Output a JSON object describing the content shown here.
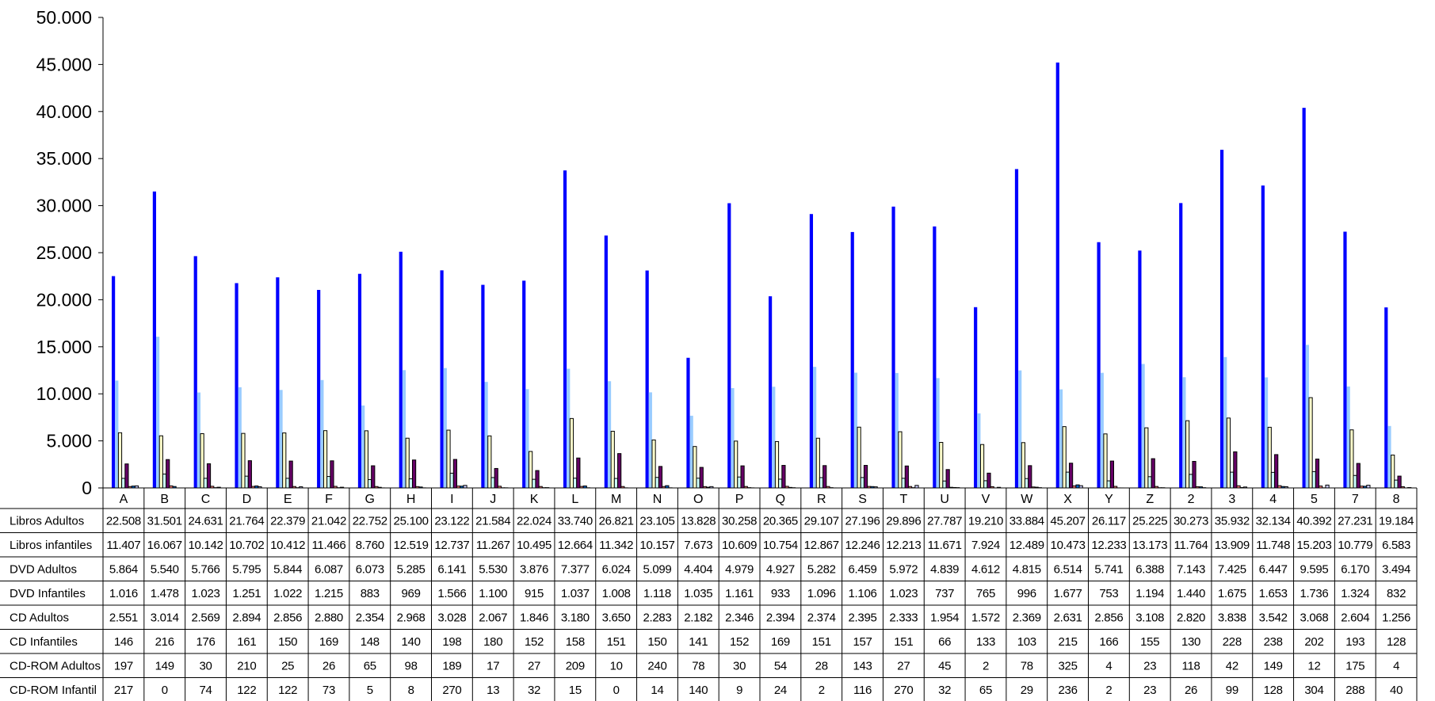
{
  "chart_data": {
    "type": "bar",
    "ylim": [
      0,
      50000
    ],
    "yticks": [
      "0",
      "5.000",
      "10.000",
      "15.000",
      "20.000",
      "25.000",
      "30.000",
      "35.000",
      "40.000",
      "45.000",
      "50.000"
    ],
    "grid": false,
    "legend": "data-table-below",
    "categories": [
      "A",
      "B",
      "C",
      "D",
      "E",
      "F",
      "G",
      "H",
      "I",
      "J",
      "K",
      "L",
      "M",
      "N",
      "O",
      "P",
      "Q",
      "R",
      "S",
      "T",
      "U",
      "V",
      "W",
      "X",
      "Y",
      "Z",
      "2",
      "3",
      "4",
      "5",
      "7",
      "8"
    ],
    "series": [
      {
        "name": "Libros Adultos",
        "color": "#0000ff",
        "fill": "#0000ff",
        "stroke": "#0000ff",
        "values": [
          22508,
          31501,
          24631,
          21764,
          22379,
          21042,
          22752,
          25100,
          23122,
          21584,
          22024,
          33740,
          26821,
          23105,
          13828,
          30258,
          20365,
          29107,
          27196,
          29896,
          27787,
          19210,
          33884,
          45207,
          26117,
          25225,
          30273,
          35932,
          32134,
          40392,
          27231,
          19184
        ],
        "labels": [
          "22.508",
          "31.501",
          "24.631",
          "21.764",
          "22.379",
          "21.042",
          "22.752",
          "25.100",
          "23.122",
          "21.584",
          "22.024",
          "33.740",
          "26.821",
          "23.105",
          "13.828",
          "30.258",
          "20.365",
          "29.107",
          "27.196",
          "29.896",
          "27.787",
          "19.210",
          "33.884",
          "45.207",
          "26.117",
          "25.225",
          "30.273",
          "35.932",
          "32.134",
          "40.392",
          "27.231",
          "19.184"
        ]
      },
      {
        "name": "Libros infantiles",
        "color": "#99ccff",
        "fill": "#99ccff",
        "stroke": "#99ccff",
        "values": [
          11407,
          16067,
          10142,
          10702,
          10412,
          11466,
          8760,
          12519,
          12737,
          11267,
          10495,
          12664,
          11342,
          10157,
          7673,
          10609,
          10754,
          12867,
          12246,
          12213,
          11671,
          7924,
          12489,
          10473,
          12233,
          13173,
          11764,
          13909,
          11748,
          15203,
          10779,
          6583
        ],
        "labels": [
          "11.407",
          "16.067",
          "10.142",
          "10.702",
          "10.412",
          "11.466",
          "8.760",
          "12.519",
          "12.737",
          "11.267",
          "10.495",
          "12.664",
          "11.342",
          "10.157",
          "7.673",
          "10.609",
          "10.754",
          "12.867",
          "12.246",
          "12.213",
          "11.671",
          "7.924",
          "12.489",
          "10.473",
          "12.233",
          "13.173",
          "11.764",
          "13.909",
          "11.748",
          "15.203",
          "10.779",
          "6.583"
        ]
      },
      {
        "name": "DVD Adultos",
        "color": "#ffffcc",
        "fill": "#ffffcc",
        "stroke": "#000000",
        "values": [
          5864,
          5540,
          5766,
          5795,
          5844,
          6087,
          6073,
          5285,
          6141,
          5530,
          3876,
          7377,
          6024,
          5099,
          4404,
          4979,
          4927,
          5282,
          6459,
          5972,
          4839,
          4612,
          4815,
          6514,
          5741,
          6388,
          7143,
          7425,
          6447,
          9595,
          6170,
          3494
        ],
        "labels": [
          "5.864",
          "5.540",
          "5.766",
          "5.795",
          "5.844",
          "6.087",
          "6.073",
          "5.285",
          "6.141",
          "5.530",
          "3.876",
          "7.377",
          "6.024",
          "5.099",
          "4.404",
          "4.979",
          "4.927",
          "5.282",
          "6.459",
          "5.972",
          "4.839",
          "4.612",
          "4.815",
          "6.514",
          "5.741",
          "6.388",
          "7.143",
          "7.425",
          "6.447",
          "9.595",
          "6.170",
          "3.494"
        ]
      },
      {
        "name": "DVD Infantiles",
        "color": "#ccffff",
        "fill": "#ccffff",
        "stroke": "#000000",
        "values": [
          1016,
          1478,
          1023,
          1251,
          1022,
          1215,
          883,
          969,
          1566,
          1100,
          915,
          1037,
          1008,
          1118,
          1035,
          1161,
          933,
          1096,
          1106,
          1023,
          737,
          765,
          996,
          1677,
          753,
          1194,
          1440,
          1675,
          1653,
          1736,
          1324,
          832
        ],
        "labels": [
          "1.016",
          "1.478",
          "1.023",
          "1.251",
          "1.022",
          "1.215",
          "883",
          "969",
          "1.566",
          "1.100",
          "915",
          "1.037",
          "1.008",
          "1.118",
          "1.035",
          "1.161",
          "933",
          "1.096",
          "1.106",
          "1.023",
          "737",
          "765",
          "996",
          "1.677",
          "753",
          "1.194",
          "1.440",
          "1.675",
          "1.653",
          "1.736",
          "1.324",
          "832"
        ]
      },
      {
        "name": "CD Adultos",
        "color": "#660066",
        "fill": "#660066",
        "stroke": "#000000",
        "values": [
          2551,
          3014,
          2569,
          2894,
          2856,
          2880,
          2354,
          2968,
          3028,
          2067,
          1846,
          3180,
          3650,
          2283,
          2182,
          2346,
          2394,
          2374,
          2395,
          2333,
          1954,
          1572,
          2369,
          2631,
          2856,
          3108,
          2820,
          3838,
          3542,
          3068,
          2604,
          1256
        ],
        "labels": [
          "2.551",
          "3.014",
          "2.569",
          "2.894",
          "2.856",
          "2.880",
          "2.354",
          "2.968",
          "3.028",
          "2.067",
          "1.846",
          "3.180",
          "3.650",
          "2.283",
          "2.182",
          "2.346",
          "2.394",
          "2.374",
          "2.395",
          "2.333",
          "1.954",
          "1.572",
          "2.369",
          "2.631",
          "2.856",
          "3.108",
          "2.820",
          "3.838",
          "3.542",
          "3.068",
          "2.604",
          "1.256"
        ]
      },
      {
        "name": "CD Infantiles",
        "color": "#ff8080",
        "fill": "#ff8080",
        "stroke": "#000000",
        "values": [
          146,
          216,
          176,
          161,
          150,
          169,
          148,
          140,
          198,
          180,
          152,
          158,
          151,
          150,
          141,
          152,
          169,
          151,
          157,
          151,
          66,
          133,
          103,
          215,
          166,
          155,
          130,
          228,
          238,
          202,
          193,
          128
        ],
        "labels": [
          "146",
          "216",
          "176",
          "161",
          "150",
          "169",
          "148",
          "140",
          "198",
          "180",
          "152",
          "158",
          "151",
          "150",
          "141",
          "152",
          "169",
          "151",
          "157",
          "151",
          "66",
          "133",
          "103",
          "215",
          "166",
          "155",
          "130",
          "228",
          "238",
          "202",
          "193",
          "128"
        ]
      },
      {
        "name": "CD-ROM Adultos",
        "color": "#0066cc",
        "fill": "#0066cc",
        "stroke": "#000000",
        "values": [
          197,
          149,
          30,
          210,
          25,
          26,
          65,
          98,
          189,
          17,
          27,
          209,
          10,
          240,
          78,
          30,
          54,
          28,
          143,
          27,
          45,
          2,
          78,
          325,
          4,
          23,
          118,
          42,
          149,
          12,
          175,
          4
        ],
        "labels": [
          "197",
          "149",
          "30",
          "210",
          "25",
          "26",
          "65",
          "98",
          "189",
          "17",
          "27",
          "209",
          "10",
          "240",
          "78",
          "30",
          "54",
          "28",
          "143",
          "27",
          "45",
          "2",
          "78",
          "325",
          "4",
          "23",
          "118",
          "42",
          "149",
          "12",
          "175",
          "4"
        ]
      },
      {
        "name": "CD-ROM Infantil",
        "color": "#ccccff",
        "fill": "#ccccff",
        "stroke": "#000000",
        "values": [
          217,
          0,
          74,
          122,
          122,
          73,
          5,
          8,
          270,
          13,
          32,
          15,
          0,
          14,
          140,
          9,
          24,
          2,
          116,
          270,
          32,
          65,
          29,
          236,
          2,
          23,
          26,
          99,
          128,
          304,
          288,
          40
        ],
        "labels": [
          "217",
          "0",
          "74",
          "122",
          "122",
          "73",
          "5",
          "8",
          "270",
          "13",
          "32",
          "15",
          "0",
          "14",
          "140",
          "9",
          "24",
          "2",
          "116",
          "270",
          "32",
          "65",
          "29",
          "236",
          "2",
          "23",
          "26",
          "99",
          "128",
          "304",
          "288",
          "40"
        ]
      }
    ]
  }
}
